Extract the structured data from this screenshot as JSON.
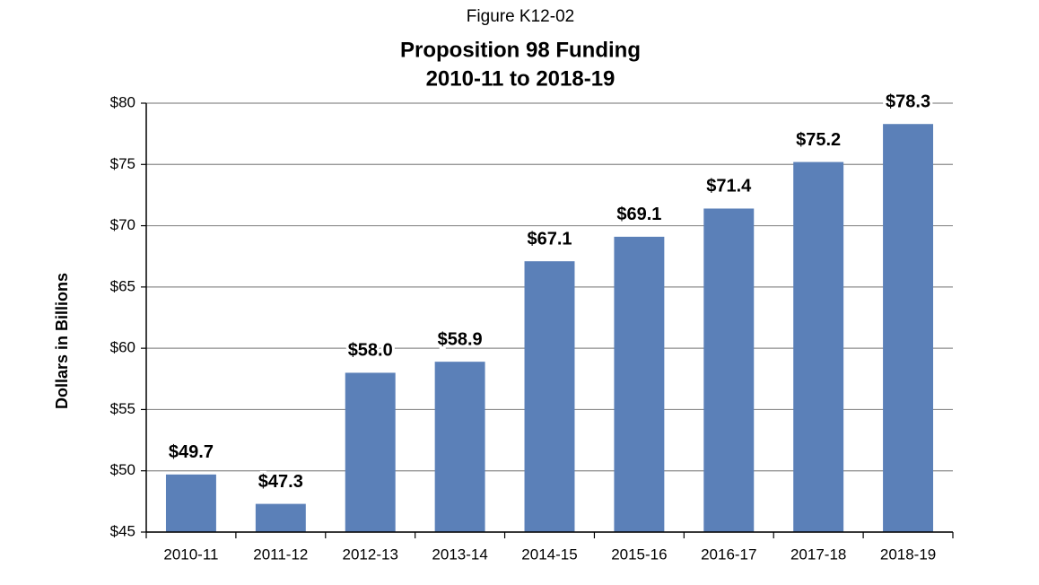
{
  "chart_data": {
    "type": "bar",
    "figure_label": "Figure K12-02",
    "title": "Proposition 98 Funding",
    "subtitle": "2010-11 to 2018-19",
    "y_label": "Dollars in Billions",
    "categories": [
      "2010-11",
      "2011-12",
      "2012-13",
      "2013-14",
      "2014-15",
      "2015-16",
      "2016-17",
      "2017-18",
      "2018-19"
    ],
    "values": [
      49.7,
      47.3,
      58.0,
      58.9,
      67.1,
      69.1,
      71.4,
      75.2,
      78.3
    ],
    "value_labels": [
      "$49.7",
      "$47.3",
      "$58.0",
      "$58.9",
      "$67.1",
      "$69.1",
      "$71.4",
      "$75.2",
      "$78.3"
    ],
    "color": "#5b80b8",
    "ylim": [
      45,
      80
    ],
    "yticks": [
      {
        "value": 45,
        "label": "$45"
      },
      {
        "value": 50,
        "label": "$50"
      },
      {
        "value": 55,
        "label": "$55"
      },
      {
        "value": 60,
        "label": "$60"
      },
      {
        "value": 65,
        "label": "$65"
      },
      {
        "value": 70,
        "label": "$70"
      },
      {
        "value": 75,
        "label": "$75"
      },
      {
        "value": 80,
        "label": "$80"
      }
    ],
    "grid": true
  }
}
